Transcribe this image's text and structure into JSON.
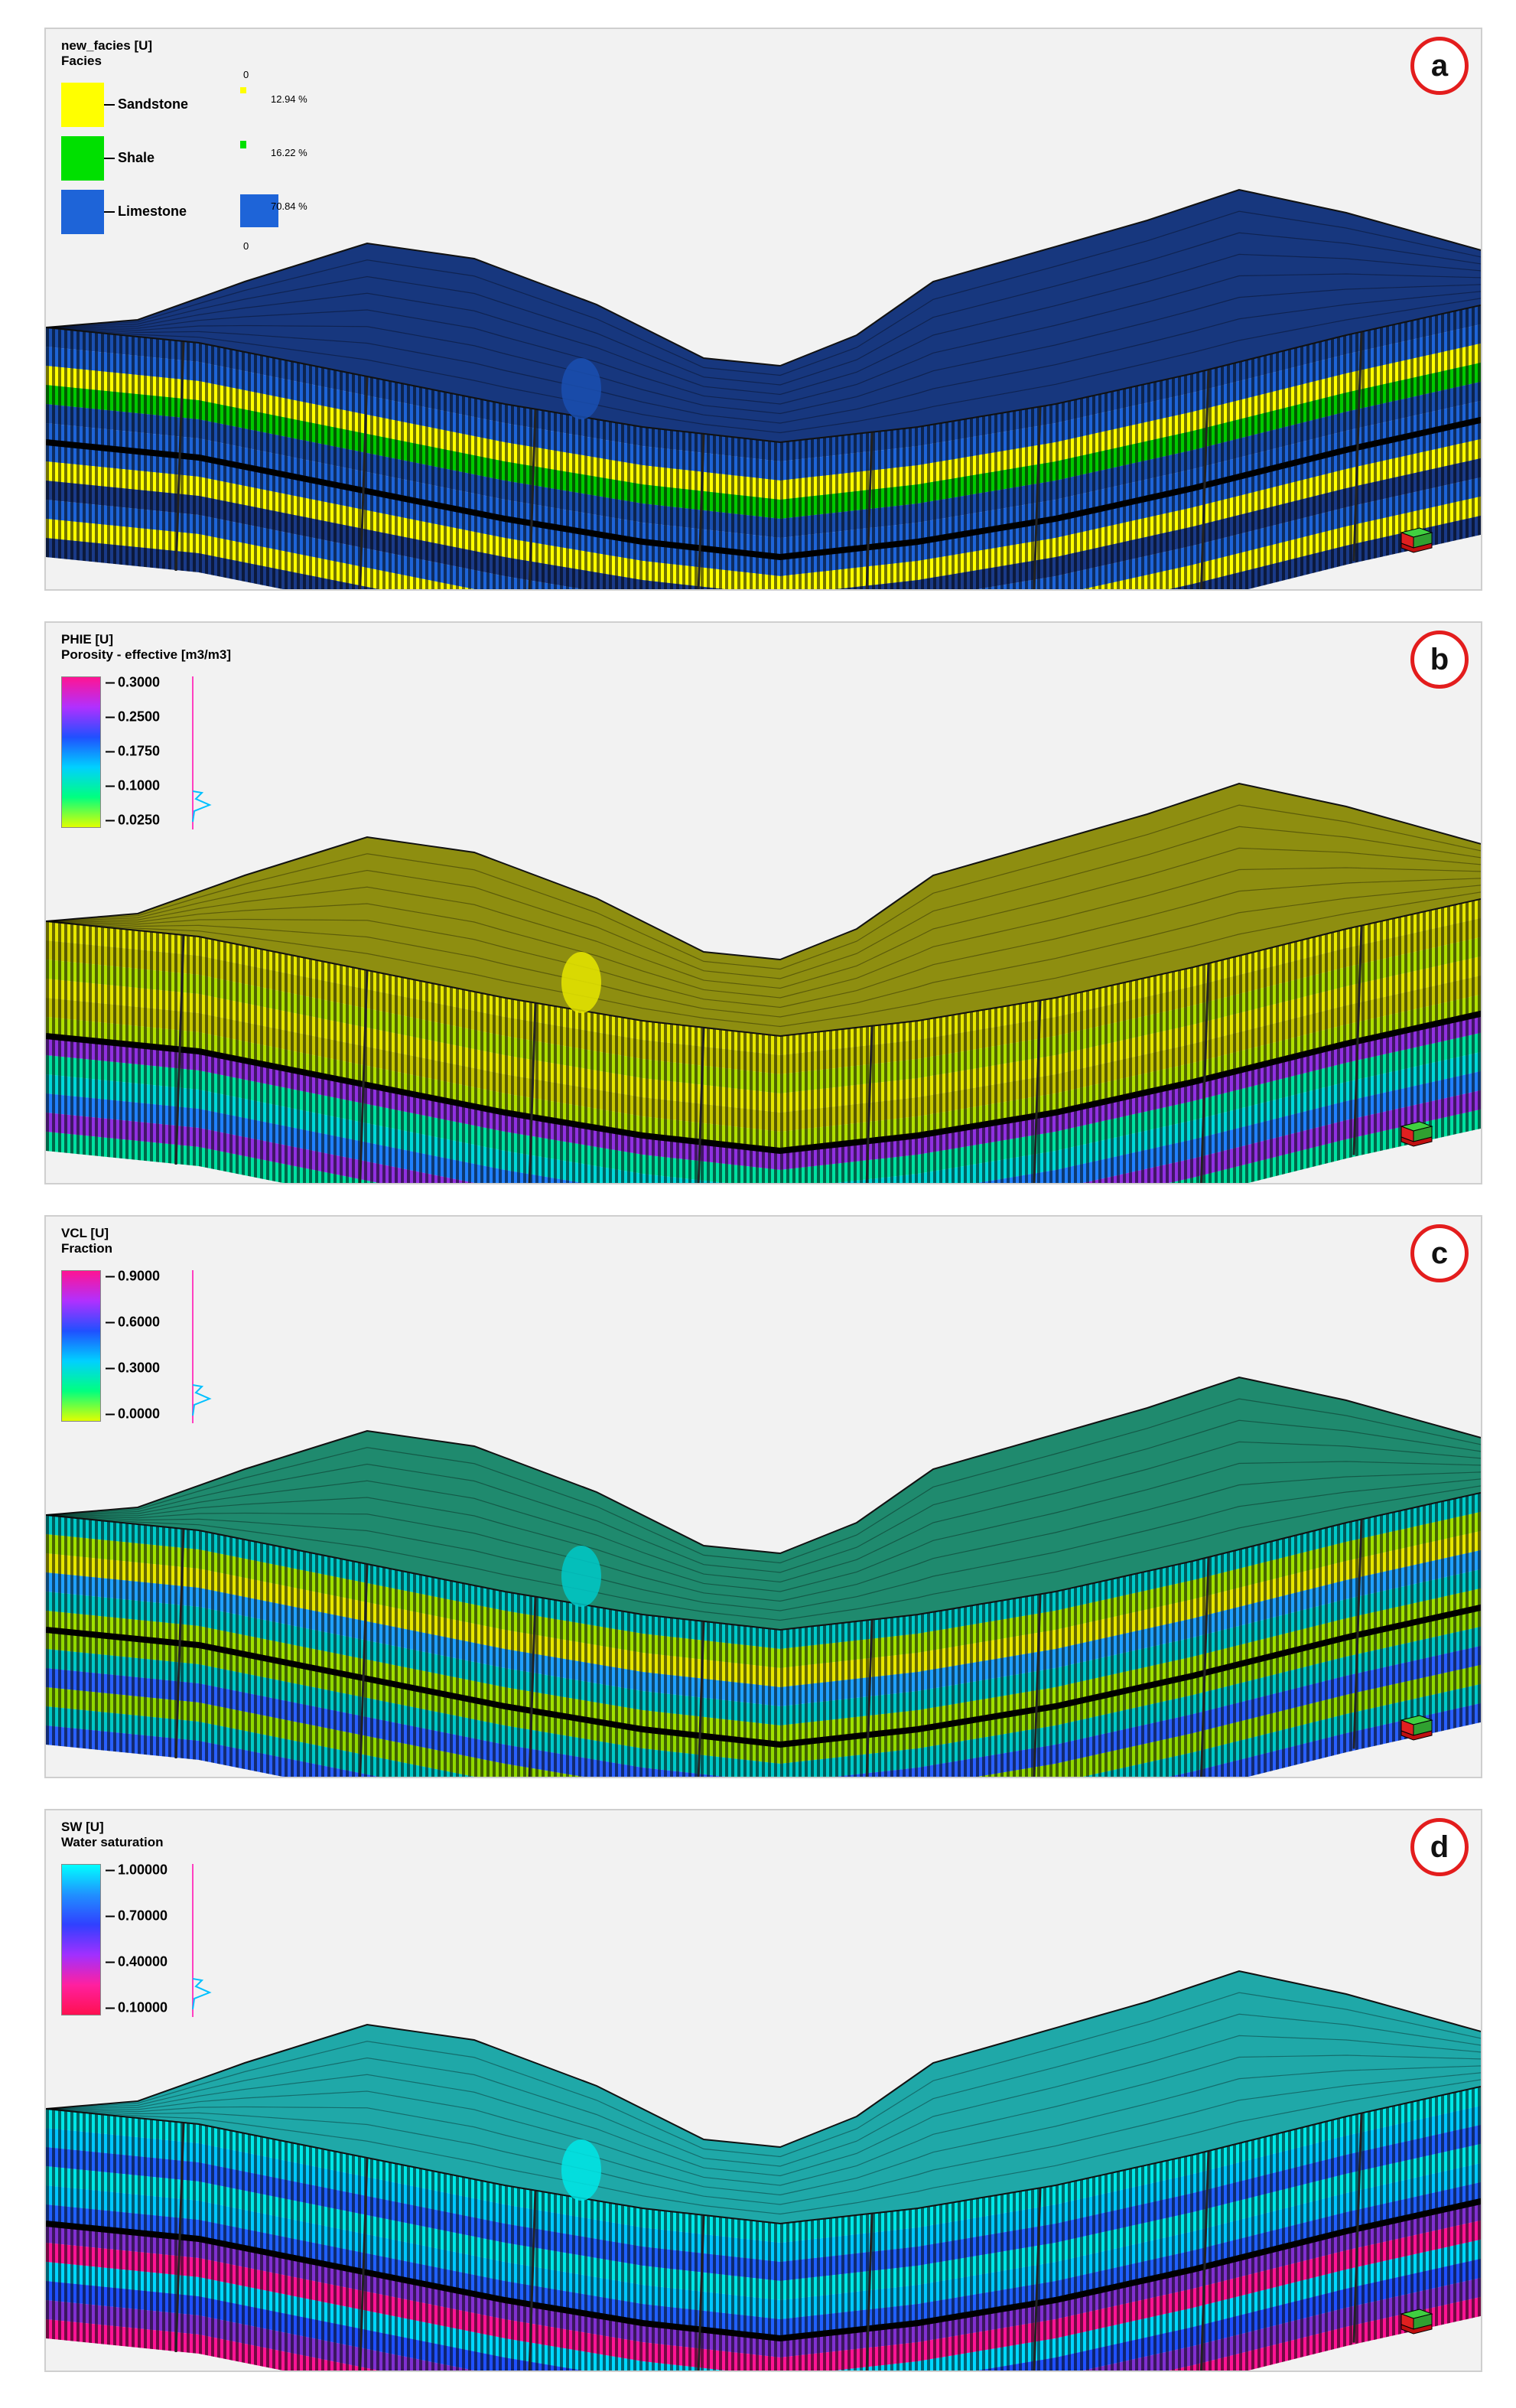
{
  "panels": [
    {
      "letter": "a",
      "property": "new_facies [U]",
      "subtitle": "Facies",
      "legend_type": "facies",
      "facies": [
        {
          "name": "Sandstone",
          "color": "#ffff00",
          "percent": "12.94 %"
        },
        {
          "name": "Shale",
          "color": "#00e000",
          "percent": "16.22 %"
        },
        {
          "name": "Limestone",
          "color": "#1e64d8",
          "percent": "70.84 %"
        }
      ],
      "pct_axis_top": "0",
      "pct_axis_bottom": "0",
      "surface_color": "#17377e",
      "wall_colors": [
        "#1a4fb0",
        "#1e64d8",
        "#ffff00",
        "#00c800"
      ],
      "lower_colors": [
        "#1e64d8",
        "#ffff00",
        "#1a3a88"
      ]
    },
    {
      "letter": "b",
      "property": "PHIE [U]",
      "subtitle": "Porosity - effective [m3/m3]",
      "legend_type": "continuous",
      "ticks": [
        "0.3000",
        "0.2500",
        "0.1750",
        "0.1000",
        "0.0250"
      ],
      "gradient": [
        "#ff1493",
        "#b030ff",
        "#2050ff",
        "#00d0ff",
        "#00ff80",
        "#e0ff00"
      ],
      "surface_color": "#8e8e10",
      "wall_colors": [
        "#e6e600",
        "#c8c800",
        "#b0e000"
      ],
      "lower_colors": [
        "#00d8d8",
        "#2080ff",
        "#9030e0",
        "#00e0a0"
      ]
    },
    {
      "letter": "c",
      "property": "VCL [U]",
      "subtitle": "Fraction",
      "legend_type": "continuous",
      "ticks": [
        "0.9000",
        "0.6000",
        "0.3000",
        "0.0000"
      ],
      "gradient": [
        "#ff1493",
        "#b030ff",
        "#2050ff",
        "#00d0ff",
        "#00ff80",
        "#e0ff00"
      ],
      "surface_color": "#1f8a6e",
      "wall_colors": [
        "#00c8c8",
        "#a0e000",
        "#e6e600",
        "#20a0ff"
      ],
      "lower_colors": [
        "#90d800",
        "#00c8c8",
        "#2a60ff"
      ]
    },
    {
      "letter": "d",
      "property": "SW [U]",
      "subtitle": "Water saturation",
      "legend_type": "continuous",
      "ticks": [
        "1.00000",
        "0.70000",
        "0.40000",
        "0.10000"
      ],
      "gradient": [
        "#00ffff",
        "#2090ff",
        "#3040ff",
        "#a030ff",
        "#ff20a0",
        "#ff1050"
      ],
      "surface_color": "#1fa8a8",
      "wall_colors": [
        "#00e6e6",
        "#00c8ff",
        "#2060ff"
      ],
      "lower_colors": [
        "#00d8ff",
        "#2050ff",
        "#8030d0",
        "#ff1493"
      ]
    }
  ]
}
